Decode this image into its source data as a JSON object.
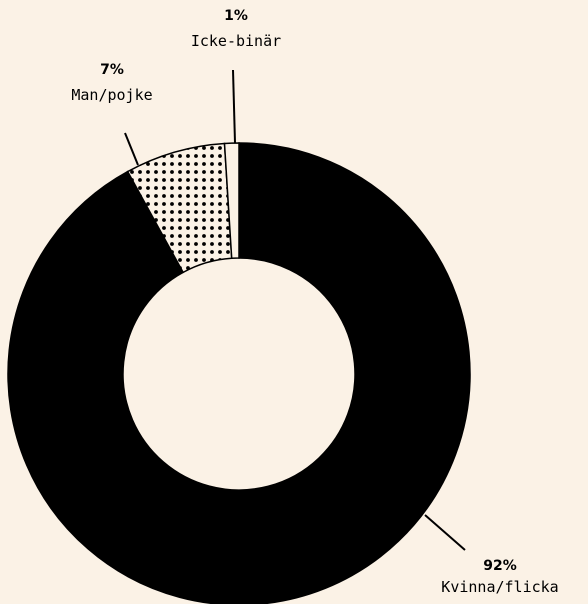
{
  "chart_data": {
    "type": "donut",
    "categories": [
      "Kvinna/flicka",
      "Man/pojke",
      "Icke-binär"
    ],
    "values": [
      92,
      7,
      1
    ],
    "value_labels": [
      "92%",
      "7%",
      "1%"
    ],
    "colors": [
      "#000000",
      "dots",
      "#fbf2e6"
    ]
  }
}
